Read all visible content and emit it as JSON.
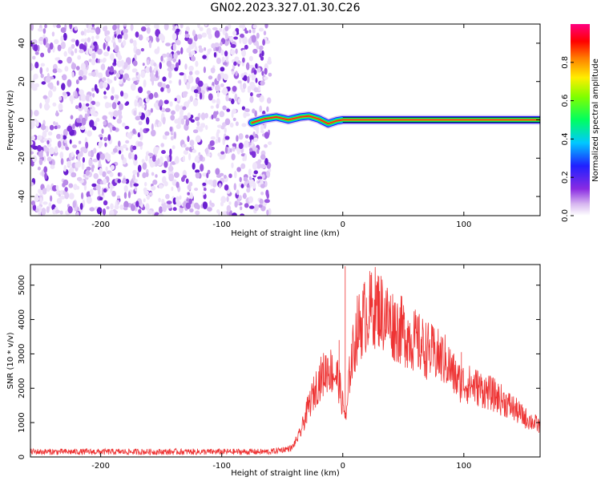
{
  "title": "GN02.2023.327.01.30.C26",
  "colors": {
    "line": "#ee3333",
    "axis": "#000000",
    "noise": "#8a2be2"
  },
  "chart_data": [
    {
      "type": "heatmap",
      "name": "spectrogram",
      "xlabel": "Height of straight line (km)",
      "ylabel": "Frequency (Hz)",
      "xlim": [
        -258,
        163
      ],
      "ylim": [
        -50,
        50
      ],
      "xticks": [
        -200,
        -100,
        0,
        100
      ],
      "yticks": [
        -40,
        -20,
        0,
        20,
        40
      ],
      "grid": false,
      "noise_region_x": [
        -258,
        -60
      ],
      "ridge": [
        {
          "x": -75,
          "y": -1.5
        },
        {
          "x": -65,
          "y": 0.5
        },
        {
          "x": -55,
          "y": 1.5
        },
        {
          "x": -45,
          "y": 0
        },
        {
          "x": -35,
          "y": 1.5
        },
        {
          "x": -28,
          "y": 2
        },
        {
          "x": -20,
          "y": 0.5
        },
        {
          "x": -12,
          "y": -2
        },
        {
          "x": -5,
          "y": -0.5
        },
        {
          "x": 0,
          "y": 0
        },
        {
          "x": 163,
          "y": 0
        }
      ],
      "colorbar": {
        "label": "Normalized spectral amplitude",
        "range": [
          0,
          1
        ],
        "ticks": [
          "0.0",
          "0.2",
          "0.4",
          "0.6",
          "0.8"
        ],
        "tick_values": [
          0,
          0.2,
          0.4,
          0.6,
          0.8
        ]
      }
    },
    {
      "type": "line",
      "name": "snr",
      "xlabel": "Height of straight line (km)",
      "ylabel": "SNR (10 * v/v)",
      "xlim": [
        -258,
        163
      ],
      "ylim": [
        0,
        5600
      ],
      "xticks": [
        -200,
        -100,
        0,
        100
      ],
      "yticks": [
        0,
        1000,
        2000,
        3000,
        4000,
        5000
      ],
      "grid": false,
      "envelope": [
        {
          "x": -258,
          "y": 150
        },
        {
          "x": -60,
          "y": 150
        },
        {
          "x": -42,
          "y": 260
        },
        {
          "x": -35,
          "y": 700
        },
        {
          "x": -28,
          "y": 1500
        },
        {
          "x": -20,
          "y": 2200
        },
        {
          "x": -12,
          "y": 2600
        },
        {
          "x": -4,
          "y": 2300
        },
        {
          "x": 0,
          "y": 1500
        },
        {
          "x": 3,
          "y": 1100
        },
        {
          "x": 6,
          "y": 2600
        },
        {
          "x": 12,
          "y": 3700
        },
        {
          "x": 20,
          "y": 4200
        },
        {
          "x": 28,
          "y": 4400
        },
        {
          "x": 40,
          "y": 3900
        },
        {
          "x": 55,
          "y": 3500
        },
        {
          "x": 70,
          "y": 3100
        },
        {
          "x": 85,
          "y": 2800
        },
        {
          "x": 95,
          "y": 2200
        },
        {
          "x": 110,
          "y": 2050
        },
        {
          "x": 125,
          "y": 1800
        },
        {
          "x": 140,
          "y": 1450
        },
        {
          "x": 150,
          "y": 1150
        },
        {
          "x": 163,
          "y": 900
        }
      ],
      "spikes": [
        {
          "x": 2,
          "y": 5550
        },
        {
          "x": 28,
          "y": 4950
        },
        {
          "x": 22,
          "y": 4700
        },
        {
          "x": -3,
          "y": 3400
        },
        {
          "x": 98,
          "y": 3050
        },
        {
          "x": 65,
          "y": 3500
        }
      ]
    }
  ]
}
